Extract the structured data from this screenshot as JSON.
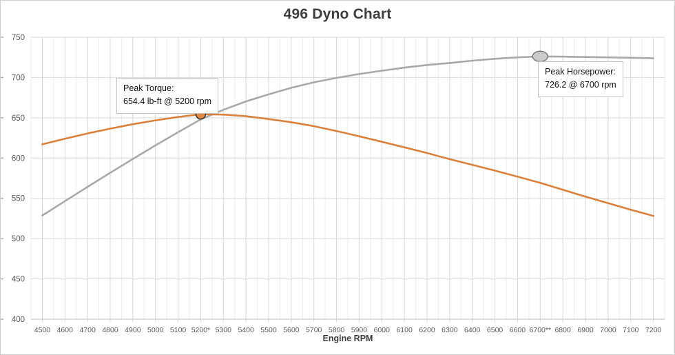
{
  "window": {
    "background": "#ffffff",
    "border_color": "#cfcfcf"
  },
  "chart_data": {
    "type": "line",
    "title": "496 Dyno Chart",
    "xlabel": "Engine RPM",
    "ylabel": "",
    "grid": true,
    "legend": "none",
    "ylim": [
      400,
      750
    ],
    "y_ticks": [
      400,
      450,
      500,
      550,
      600,
      650,
      700,
      750
    ],
    "y_tick_labels": [
      "400",
      "450",
      "500",
      "550",
      "600",
      "650",
      "700",
      "750"
    ],
    "x": [
      4500,
      4600,
      4700,
      4800,
      4900,
      5000,
      5100,
      5200,
      5300,
      5400,
      5500,
      5600,
      5700,
      5800,
      5900,
      6000,
      6100,
      6200,
      6300,
      6400,
      6500,
      6600,
      6700,
      6800,
      6900,
      7000,
      7100,
      7200
    ],
    "x_tick_labels": [
      "4500",
      "4600",
      "4700",
      "4800",
      "4900",
      "5000",
      "5100",
      "5200*",
      "5300",
      "5400",
      "5500",
      "5600",
      "5700",
      "5800",
      "5900",
      "6000",
      "6100",
      "6200",
      "6300",
      "6400",
      "6500",
      "6600",
      "6700**",
      "6800",
      "6900",
      "7000",
      "7100",
      "7200"
    ],
    "series": [
      {
        "name": "Horsepower",
        "color": "#a8a8a8",
        "values": [
          528.7,
          546.5,
          564.2,
          581.7,
          598.9,
          615.7,
          632.1,
          647.9,
          659.9,
          670.3,
          679.1,
          687.2,
          694.0,
          699.5,
          704.3,
          708.4,
          712.3,
          715.5,
          718.0,
          720.9,
          723.2,
          725.0,
          726.2,
          725.9,
          725.4,
          725.0,
          724.5,
          724.0
        ]
      },
      {
        "name": "Torque",
        "color": "#d9813c",
        "values": [
          617.0,
          624.0,
          630.5,
          636.5,
          642.0,
          646.8,
          651.0,
          654.4,
          654.0,
          651.9,
          648.4,
          644.5,
          639.6,
          633.5,
          627.0,
          620.2,
          613.3,
          606.2,
          598.6,
          591.6,
          584.4,
          576.9,
          569.3,
          560.7,
          552.1,
          544.0,
          535.9,
          528.1
        ]
      }
    ],
    "markers": [
      {
        "series": "Torque",
        "rpm": 5200,
        "value": 654.4,
        "shape": "circle",
        "fill": "#de8747",
        "stroke": "#3a3a3a"
      },
      {
        "series": "Horsepower",
        "rpm": 6700,
        "value": 726.2,
        "shape": "ellipse",
        "fill": "#cbcbcb",
        "stroke": "#6b6b6b"
      }
    ],
    "annotations": [
      {
        "id": "peak_torque",
        "lines": [
          "Peak Torque:",
          "654.4 lb-ft @ 5200 rpm"
        ]
      },
      {
        "id": "peak_horsepower",
        "lines": [
          "Peak Horsepower:",
          "726.2 @ 6700 rpm"
        ]
      }
    ],
    "colors": {
      "major_gridline": "#d6d6d6",
      "minor_gridline": "#ececec",
      "horizontal_gridline": "#d9d9d9",
      "axis_line": "#bfbfbf",
      "tick_label": "#595959",
      "title_text": "#3d3d3d"
    }
  }
}
